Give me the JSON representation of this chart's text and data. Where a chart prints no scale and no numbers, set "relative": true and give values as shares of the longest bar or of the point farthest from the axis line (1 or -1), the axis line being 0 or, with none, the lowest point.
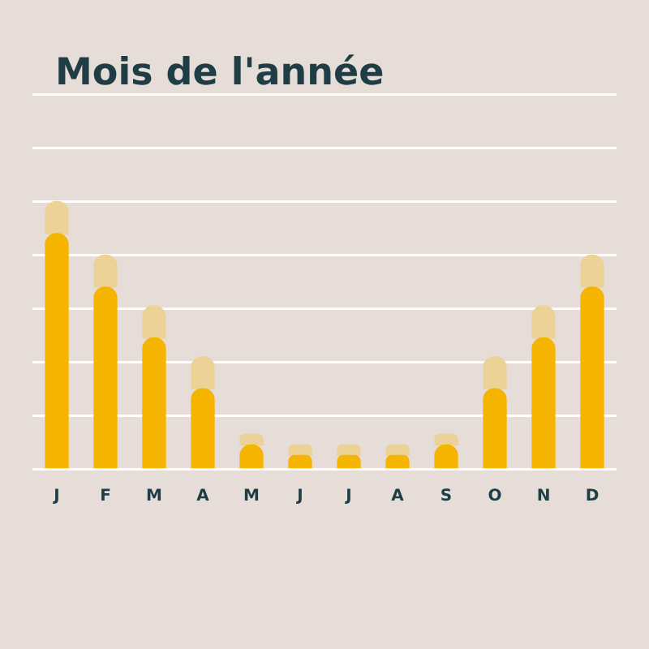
{
  "chart_data": {
    "type": "bar",
    "title": "Mois de l'année",
    "categories": [
      "J",
      "F",
      "M",
      "A",
      "M",
      "J",
      "J",
      "A",
      "S",
      "O",
      "N",
      "D"
    ],
    "relative": true,
    "stacked": true,
    "grid": "y",
    "legend": false,
    "series": [
      {
        "color": "#f5b400",
        "values": [
          0.88,
          0.68,
          0.49,
          0.3,
          0.09,
          0.05,
          0.05,
          0.05,
          0.09,
          0.3,
          0.49,
          0.68
        ]
      },
      {
        "color": "#ecd296",
        "values": [
          0.12,
          0.12,
          0.12,
          0.12,
          0.04,
          0.04,
          0.04,
          0.04,
          0.04,
          0.12,
          0.12,
          0.12
        ]
      }
    ]
  }
}
